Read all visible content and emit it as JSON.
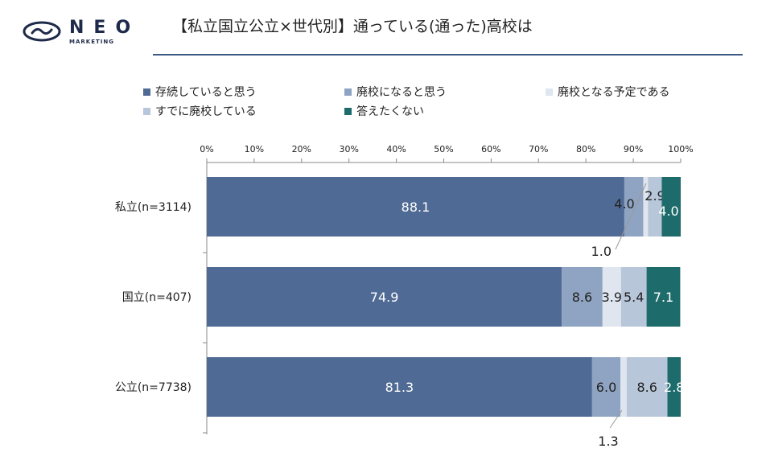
{
  "header": {
    "logo_text": "NEO",
    "logo_subtext": "MARKETING",
    "title": "【私立国立公立×世代別】通っている(通った)高校は"
  },
  "chart_data": {
    "type": "bar",
    "orientation": "horizontal",
    "stacked": true,
    "categories": [
      "私立(n=3114)",
      "国立(n=407)",
      "公立(n=7738)"
    ],
    "series": [
      {
        "name": "存続していると思う",
        "color": "#4f6a94",
        "values": [
          88.1,
          74.9,
          81.3
        ],
        "labels": [
          "88.1",
          "74.9",
          "81.3"
        ]
      },
      {
        "name": "廃校になると思う",
        "color": "#8fa4c2",
        "values": [
          4.0,
          8.6,
          6.0
        ],
        "labels": [
          "4.0",
          "8.6",
          "6.0"
        ]
      },
      {
        "name": "廃校となる予定である",
        "color": "#dfe6ef",
        "values": [
          1.0,
          3.9,
          1.3
        ],
        "labels": [
          "1.0",
          "3.9",
          "1.3"
        ]
      },
      {
        "name": "すでに廃校している",
        "color": "#b8c6da",
        "values": [
          2.9,
          5.4,
          8.6
        ],
        "labels": [
          "2.9",
          "5.4",
          "8.6"
        ]
      },
      {
        "name": "答えたくない",
        "color": "#1e6b6b",
        "values": [
          4.0,
          7.1,
          2.8
        ],
        "labels": [
          "4.0",
          "7.1",
          "2.8"
        ]
      }
    ],
    "x_ticks": [
      "0%",
      "10%",
      "20%",
      "30%",
      "40%",
      "50%",
      "60%",
      "70%",
      "80%",
      "90%",
      "100%"
    ],
    "xlim": [
      0,
      100
    ],
    "legend_position": "top",
    "grid": false
  }
}
